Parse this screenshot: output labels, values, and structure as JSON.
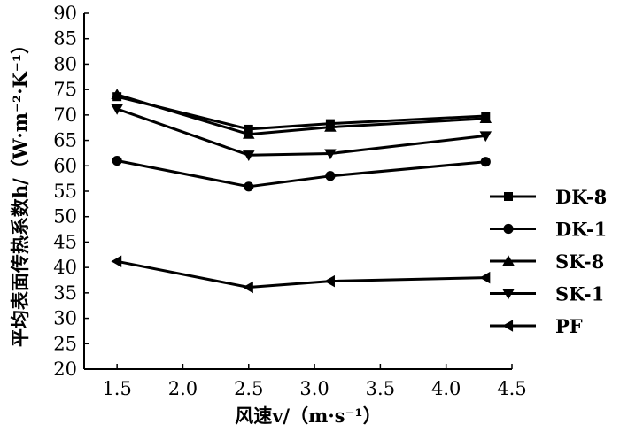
{
  "chart_data": {
    "type": "line",
    "xlabel": "风速v/（m·s⁻¹）",
    "ylabel": "平均表面传热系数h/（W·m⁻²·K⁻¹）",
    "xlim": [
      1.25,
      4.5
    ],
    "ylim": [
      20,
      90
    ],
    "x_ticks": [
      "1.5",
      "2.0",
      "2.5",
      "3.0",
      "3.5",
      "4.0",
      "4.5"
    ],
    "x_tick_values": [
      1.5,
      2.0,
      2.5,
      3.0,
      3.5,
      4.0,
      4.5
    ],
    "y_ticks": [
      "20",
      "25",
      "30",
      "35",
      "40",
      "45",
      "50",
      "55",
      "60",
      "65",
      "70",
      "75",
      "80",
      "85",
      "90"
    ],
    "y_tick_values": [
      20,
      25,
      30,
      35,
      40,
      45,
      50,
      55,
      60,
      65,
      70,
      75,
      80,
      85,
      90
    ],
    "grid": false,
    "legend_position": "right",
    "series": [
      {
        "name": "DK-8",
        "marker": "square",
        "x": [
          1.5,
          2.5,
          3.12,
          4.3
        ],
        "y": [
          73.6,
          67.2,
          68.3,
          69.8
        ]
      },
      {
        "name": "DK-1",
        "marker": "circle",
        "x": [
          1.5,
          2.5,
          3.12,
          4.3
        ],
        "y": [
          61.0,
          55.9,
          58.0,
          60.8
        ]
      },
      {
        "name": "SK-8",
        "marker": "triangle-up",
        "x": [
          1.5,
          2.5,
          3.12,
          4.3
        ],
        "y": [
          74.0,
          66.2,
          67.6,
          69.3
        ]
      },
      {
        "name": "SK-1",
        "marker": "triangle-down",
        "x": [
          1.5,
          2.5,
          3.12,
          4.3
        ],
        "y": [
          71.2,
          62.1,
          62.4,
          65.9
        ]
      },
      {
        "name": "PF",
        "marker": "triangle-left",
        "x": [
          1.5,
          2.5,
          3.12,
          4.3
        ],
        "y": [
          41.2,
          36.1,
          37.3,
          38.0
        ]
      }
    ]
  }
}
